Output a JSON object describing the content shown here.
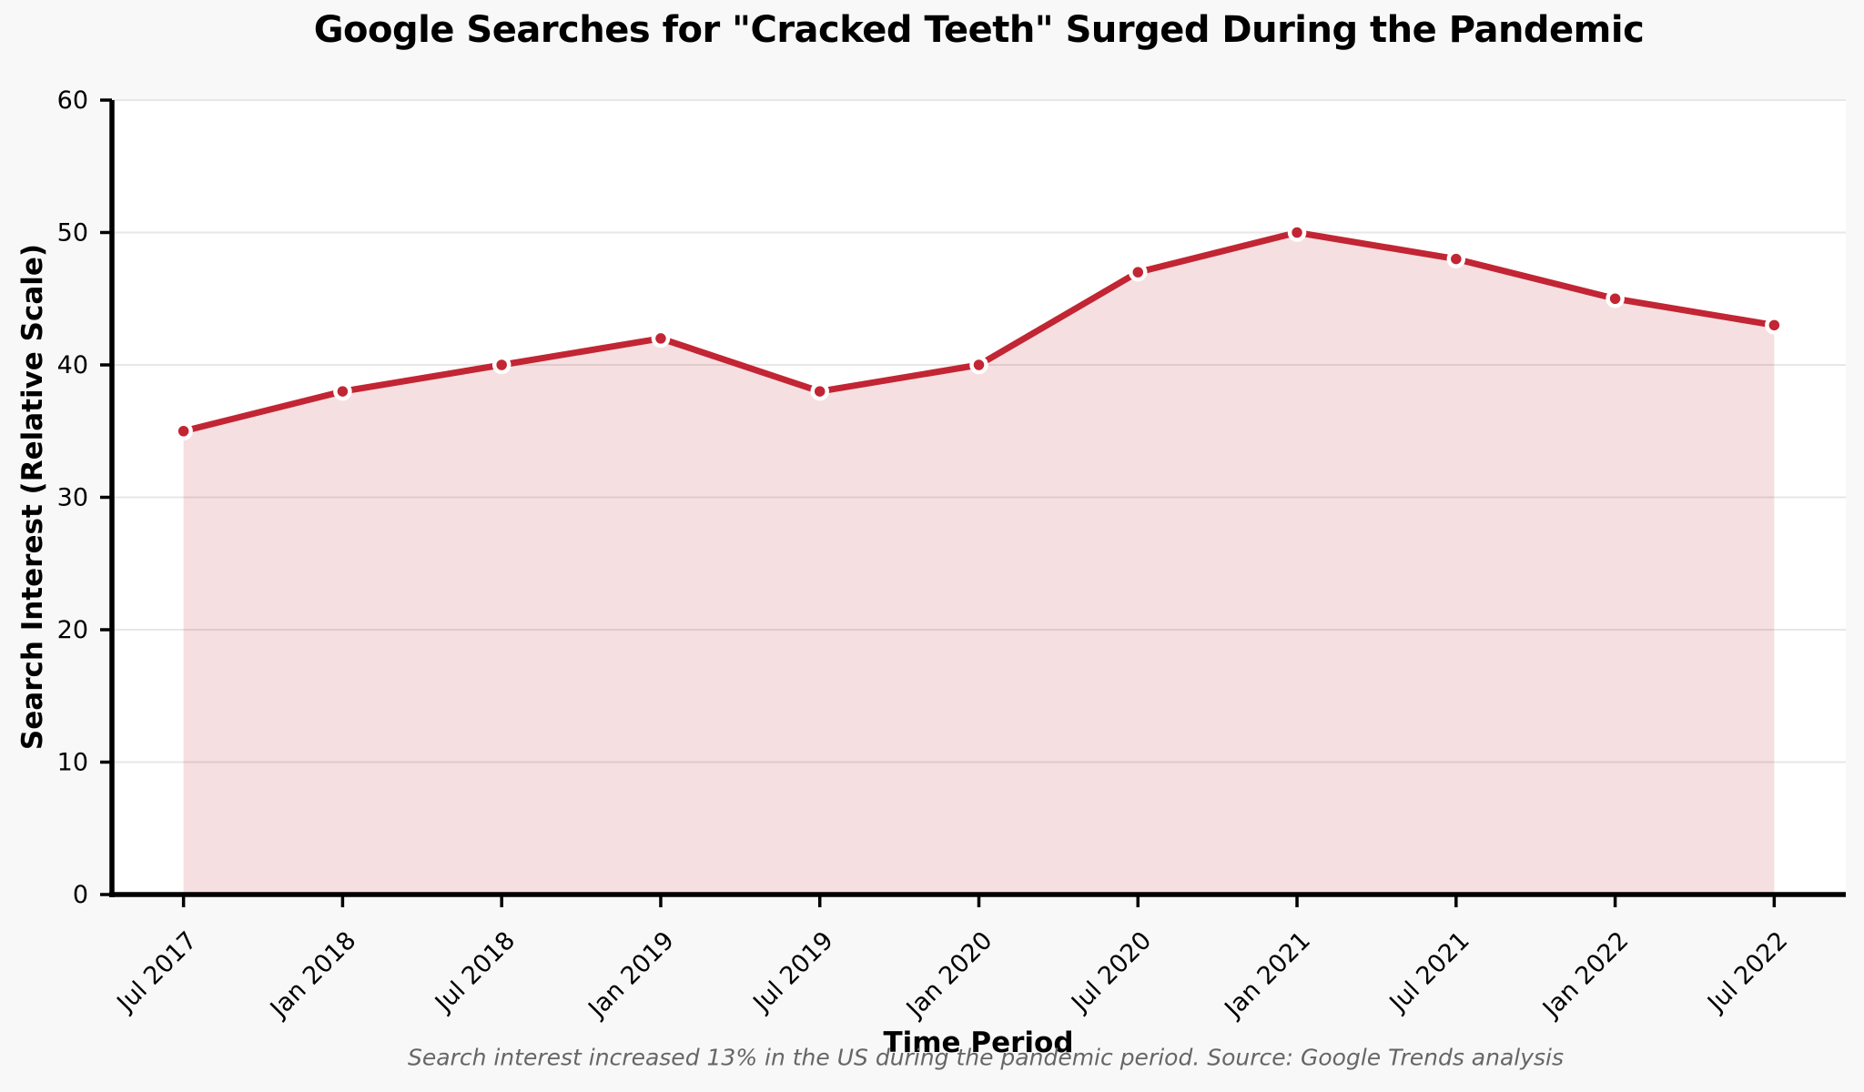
{
  "chart_data": {
    "type": "area",
    "title": "Google Searches for \"Cracked Teeth\" Surged During the Pandemic",
    "xlabel": "Time Period",
    "ylabel": "Search Interest (Relative Scale)",
    "footnote": "Search interest increased 13% in the US during the pandemic period. Source: Google Trends analysis",
    "categories": [
      "Jul 2017",
      "Jan 2018",
      "Jul 2018",
      "Jan 2019",
      "Jul 2019",
      "Jan 2020",
      "Jul 2020",
      "Jan 2021",
      "Jul 2021",
      "Jan 2022",
      "Jul 2022"
    ],
    "values": [
      35,
      38,
      40,
      42,
      38,
      40,
      47,
      50,
      48,
      45,
      43
    ],
    "ylim": [
      0,
      60
    ],
    "yticks": [
      0,
      10,
      20,
      30,
      40,
      50,
      60
    ],
    "grid": "horizontal",
    "legend": "none",
    "fill_alpha": 0.15,
    "colors": {
      "line": "#c22533",
      "marker_face": "#c22533",
      "marker_edge": "#ffffff",
      "figure_bg": "#f8f8f8",
      "plot_bg": "#ffffff",
      "grid": "#e7e7e7",
      "axis": "#000000",
      "tick_label": "#000000",
      "footnote": "#666666"
    }
  }
}
